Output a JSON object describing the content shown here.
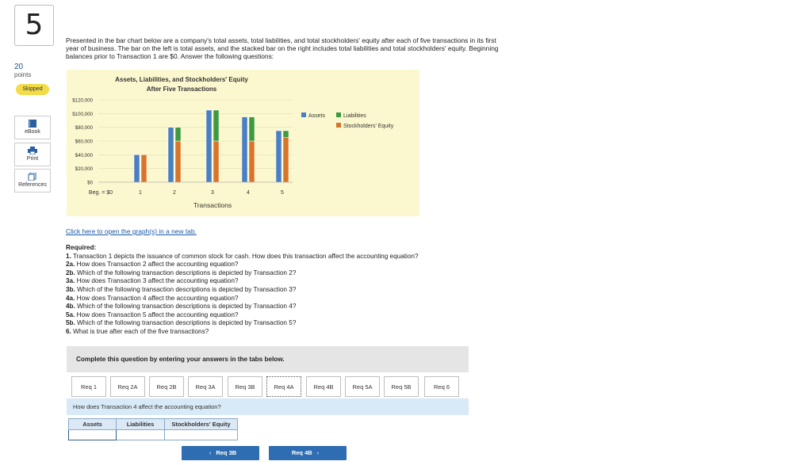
{
  "question": {
    "number": "5",
    "points_value": "20",
    "points_label": "points",
    "status": "Skipped"
  },
  "sidebar": {
    "items": [
      {
        "label": "eBook",
        "icon": "book-icon"
      },
      {
        "label": "Print",
        "icon": "printer-icon"
      },
      {
        "label": "References",
        "icon": "references-icon"
      }
    ]
  },
  "intro_text": "Presented in the bar chart below are a company's total assets, total liabilities, and total stockholders' equity after each of five transactions in its first year of business. The bar on the left is total assets, and the stacked bar on the right includes total liabilities and total stockholders' equity. Beginning balances prior to Transaction 1 are $0. Answer the following questions:",
  "chart_data": {
    "type": "bar",
    "title": "Assets, Liabilities, and Stockholders' Equity",
    "subtitle": "After Five Transactions",
    "xlabel": "Transactions",
    "ylabel": "",
    "categories": [
      "Beg. = $0",
      "1",
      "2",
      "3",
      "4",
      "5"
    ],
    "ylim": [
      0,
      120000
    ],
    "yticks": [
      "$0",
      "$20,000",
      "$40,000",
      "$60,000",
      "$80,000",
      "$100,000",
      "$120,000"
    ],
    "legend_position": "right",
    "series": [
      {
        "name": "Assets",
        "color": "#4a7fc1",
        "values": [
          0,
          40000,
          80000,
          105000,
          95000,
          75000
        ]
      },
      {
        "name": "Liabilities",
        "color": "#3f9a3f",
        "values": [
          0,
          0,
          20000,
          45000,
          35000,
          10000
        ]
      },
      {
        "name": "Stockholders' Equity",
        "color": "#d9742b",
        "values": [
          0,
          40000,
          60000,
          60000,
          60000,
          65000
        ]
      }
    ],
    "stacked_series": [
      "Liabilities",
      "Stockholders' Equity"
    ]
  },
  "link_text": "Click here to open the graph(s) in a new tab.",
  "required": {
    "heading": "Required:",
    "questions": [
      {
        "label": "1.",
        "text": "Transaction 1 depicts the issuance of common stock for cash. How does this transaction affect the accounting equation?"
      },
      {
        "label": "2a.",
        "text": "How does Transaction 2 affect the accounting equation?"
      },
      {
        "label": "2b.",
        "text": "Which of the following transaction descriptions is depicted by Transaction 2?"
      },
      {
        "label": "3a.",
        "text": "How does Transaction 3 affect the accounting equation?"
      },
      {
        "label": "3b.",
        "text": "Which of the following transaction descriptions is depicted by Transaction 3?"
      },
      {
        "label": "4a.",
        "text": "How does Transaction 4 affect the accounting equation?"
      },
      {
        "label": "4b.",
        "text": "Which of the following transaction descriptions is depicted by Transaction 4?"
      },
      {
        "label": "5a.",
        "text": "How does Transaction 5 affect the accounting equation?"
      },
      {
        "label": "5b.",
        "text": "Which of the following transaction descriptions is depicted by Transaction 5?"
      },
      {
        "label": "6.",
        "text": "What is true after each of the five transactions?"
      }
    ]
  },
  "instructions": "Complete this question by entering your answers in the tabs below.",
  "tabs": [
    "Req 1",
    "Req 2A",
    "Req 2B",
    "Req 3A",
    "Req 3B",
    "Req 4A",
    "Req 4B",
    "Req 5A",
    "Req 5B",
    "Req 6"
  ],
  "active_tab": "Req 4A",
  "tab_prompt": "How does Transaction 4 affect the accounting equation?",
  "equation_table": {
    "headers": [
      "Assets",
      "Liabilities",
      "Stockholders' Equity"
    ],
    "values": [
      "",
      "",
      ""
    ]
  },
  "nav": {
    "prev_label": "Req 3B",
    "next_label": "Req 4B",
    "prev_arrow": "‹",
    "next_arrow": "›"
  },
  "colors": {
    "primary_button": "#2f6db3",
    "skipped_badge": "#f2dc48",
    "chart_background": "#fbf8cf",
    "prompt_background": "#d8e9f7"
  }
}
